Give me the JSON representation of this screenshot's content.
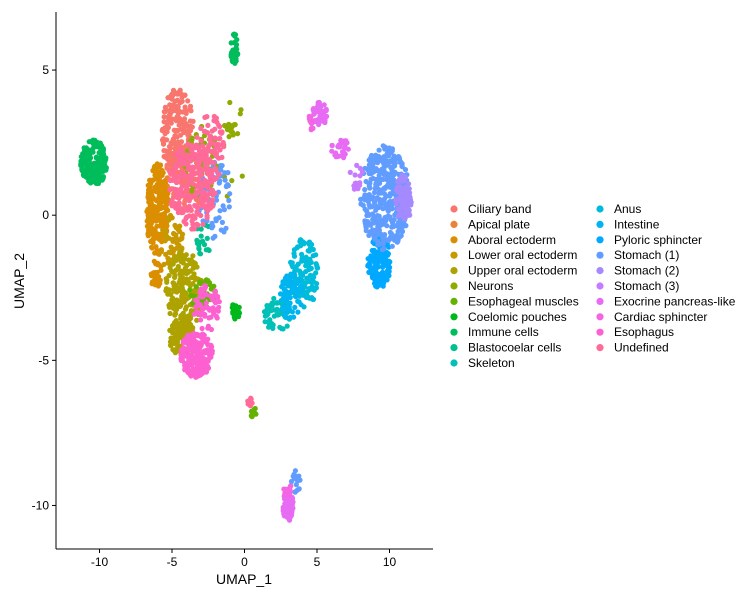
{
  "chart_data": {
    "type": "scatter",
    "title": "",
    "xlabel": "UMAP_1",
    "ylabel": "UMAP_2",
    "xlim": [
      -13,
      13
    ],
    "ylim": [
      -11.5,
      7
    ],
    "xticks": [
      -10,
      -5,
      0,
      5,
      10
    ],
    "yticks": [
      5,
      0,
      -5,
      -10
    ],
    "xtick_labels": [
      "-10",
      "-5",
      "0",
      "5",
      "10"
    ],
    "ytick_labels": [
      "5",
      "0",
      "-5",
      "-10"
    ],
    "grid": false,
    "legend_position": "right",
    "series": [
      {
        "name": "Ciliary band",
        "color": "#F8766D",
        "regions": [
          {
            "cx": -4.6,
            "cy": 2.8,
            "rx": 1.1,
            "ry": 1.6,
            "n": 220
          },
          {
            "cx": -4.0,
            "cy": 1.2,
            "rx": 1.1,
            "ry": 1.2,
            "n": 120
          }
        ]
      },
      {
        "name": "Apical plate",
        "color": "#EC8239",
        "regions": [
          {
            "cx": -5.6,
            "cy": 1.0,
            "rx": 0.4,
            "ry": 0.5,
            "n": 20
          }
        ]
      },
      {
        "name": "Aboral ectoderm",
        "color": "#DB8E00",
        "regions": [
          {
            "cx": -6.0,
            "cy": 0.2,
            "rx": 0.8,
            "ry": 1.6,
            "n": 230
          },
          {
            "cx": -6.1,
            "cy": -2.0,
            "rx": 0.4,
            "ry": 0.5,
            "n": 30
          }
        ]
      },
      {
        "name": "Lower oral ectoderm",
        "color": "#C79800",
        "regions": [
          {
            "cx": -5.0,
            "cy": -1.0,
            "rx": 0.8,
            "ry": 1.0,
            "n": 60
          }
        ]
      },
      {
        "name": "Upper oral ectoderm",
        "color": "#AEA200",
        "regions": [
          {
            "cx": -4.2,
            "cy": -2.7,
            "rx": 1.3,
            "ry": 1.5,
            "n": 220
          },
          {
            "cx": -4.3,
            "cy": -4.2,
            "rx": 0.9,
            "ry": 0.7,
            "n": 110
          }
        ]
      },
      {
        "name": "Neurons",
        "color": "#8FAA00",
        "regions": [
          {
            "cx": -2.9,
            "cy": 1.8,
            "rx": 1.2,
            "ry": 1.3,
            "n": 60
          },
          {
            "cx": -1.0,
            "cy": 3.0,
            "rx": 0.4,
            "ry": 0.3,
            "n": 15
          },
          {
            "cx": -0.8,
            "cy": 2.4,
            "rx": 0.8,
            "ry": 2.0,
            "n": 10
          }
        ]
      },
      {
        "name": "Esophageal muscles",
        "color": "#64B200",
        "regions": [
          {
            "cx": -2.9,
            "cy": -2.7,
            "rx": 1.0,
            "ry": 0.5,
            "n": 40
          },
          {
            "cx": 0.6,
            "cy": -6.8,
            "rx": 0.2,
            "ry": 0.2,
            "n": 10
          }
        ]
      },
      {
        "name": "Coelomic pouches",
        "color": "#00B81B",
        "regions": [
          {
            "cx": -0.6,
            "cy": -3.3,
            "rx": 0.3,
            "ry": 0.3,
            "n": 20
          }
        ]
      },
      {
        "name": "Immune cells",
        "color": "#00BD5C",
        "regions": [
          {
            "cx": -10.4,
            "cy": 1.8,
            "rx": 0.9,
            "ry": 0.8,
            "n": 190
          },
          {
            "cx": -0.7,
            "cy": 5.7,
            "rx": 0.25,
            "ry": 0.55,
            "n": 30
          }
        ]
      },
      {
        "name": "Blastocoelar cells",
        "color": "#00C08E",
        "regions": [
          {
            "cx": -2.8,
            "cy": -0.8,
            "rx": 0.6,
            "ry": 0.6,
            "n": 20
          }
        ]
      },
      {
        "name": "Skeleton",
        "color": "#00C0B8",
        "regions": [
          {
            "cx": 2.3,
            "cy": -3.4,
            "rx": 1.0,
            "ry": 0.6,
            "n": 60
          }
        ]
      },
      {
        "name": "Anus",
        "color": "#00BBDA",
        "regions": [
          {
            "cx": 4.1,
            "cy": -2.0,
            "rx": 1.0,
            "ry": 1.2,
            "n": 110
          }
        ]
      },
      {
        "name": "Intestine",
        "color": "#00B4EF",
        "regions": [
          {
            "cx": 3.2,
            "cy": -2.8,
            "rx": 0.8,
            "ry": 0.8,
            "n": 70
          }
        ]
      },
      {
        "name": "Pyloric sphincter",
        "color": "#00A8FF",
        "regions": [
          {
            "cx": 9.3,
            "cy": -1.6,
            "rx": 0.8,
            "ry": 0.9,
            "n": 120
          }
        ]
      },
      {
        "name": "Stomach (1)",
        "color": "#619CFF",
        "regions": [
          {
            "cx": 9.7,
            "cy": 0.6,
            "rx": 1.7,
            "ry": 1.8,
            "n": 380
          },
          {
            "cx": -2.0,
            "cy": 0.5,
            "rx": 1.3,
            "ry": 1.4,
            "n": 60
          },
          {
            "cx": 3.5,
            "cy": -9.2,
            "rx": 0.35,
            "ry": 0.4,
            "n": 15
          }
        ]
      },
      {
        "name": "Stomach (2)",
        "color": "#A58AFF",
        "regions": [
          {
            "cx": 11.0,
            "cy": 0.6,
            "rx": 0.6,
            "ry": 0.8,
            "n": 80
          }
        ]
      },
      {
        "name": "Stomach (3)",
        "color": "#C77CFF",
        "regions": [
          {
            "cx": 7.7,
            "cy": 1.3,
            "rx": 0.5,
            "ry": 0.5,
            "n": 15
          }
        ]
      },
      {
        "name": "Exocrine pancreas-like",
        "color": "#E76BF3",
        "regions": [
          {
            "cx": 5.2,
            "cy": 3.5,
            "rx": 0.5,
            "ry": 0.45,
            "n": 45
          },
          {
            "cx": 6.6,
            "cy": 2.3,
            "rx": 0.6,
            "ry": 0.35,
            "n": 30
          },
          {
            "cx": 3.0,
            "cy": -10.0,
            "rx": 0.35,
            "ry": 0.55,
            "n": 80
          }
        ]
      },
      {
        "name": "Cardiac sphincter",
        "color": "#F564E3",
        "regions": [
          {
            "cx": 4.6,
            "cy": 3.2,
            "rx": 0.3,
            "ry": 0.3,
            "n": 10
          },
          {
            "cx": 3.0,
            "cy": -9.5,
            "rx": 0.3,
            "ry": 0.3,
            "n": 10
          }
        ]
      },
      {
        "name": "Esophagus",
        "color": "#FD61D1",
        "regions": [
          {
            "cx": -3.3,
            "cy": -4.8,
            "rx": 1.1,
            "ry": 0.8,
            "n": 200
          },
          {
            "cx": -2.6,
            "cy": -3.2,
            "rx": 0.9,
            "ry": 0.8,
            "n": 60
          }
        ]
      },
      {
        "name": "Undefined",
        "color": "#FF6A98",
        "regions": [
          {
            "cx": -3.6,
            "cy": 1.0,
            "rx": 1.6,
            "ry": 1.5,
            "n": 200
          },
          {
            "cx": -2.4,
            "cy": 2.3,
            "rx": 1.0,
            "ry": 1.2,
            "n": 80
          },
          {
            "cx": 0.4,
            "cy": -6.4,
            "rx": 0.2,
            "ry": 0.2,
            "n": 10
          }
        ]
      }
    ]
  }
}
